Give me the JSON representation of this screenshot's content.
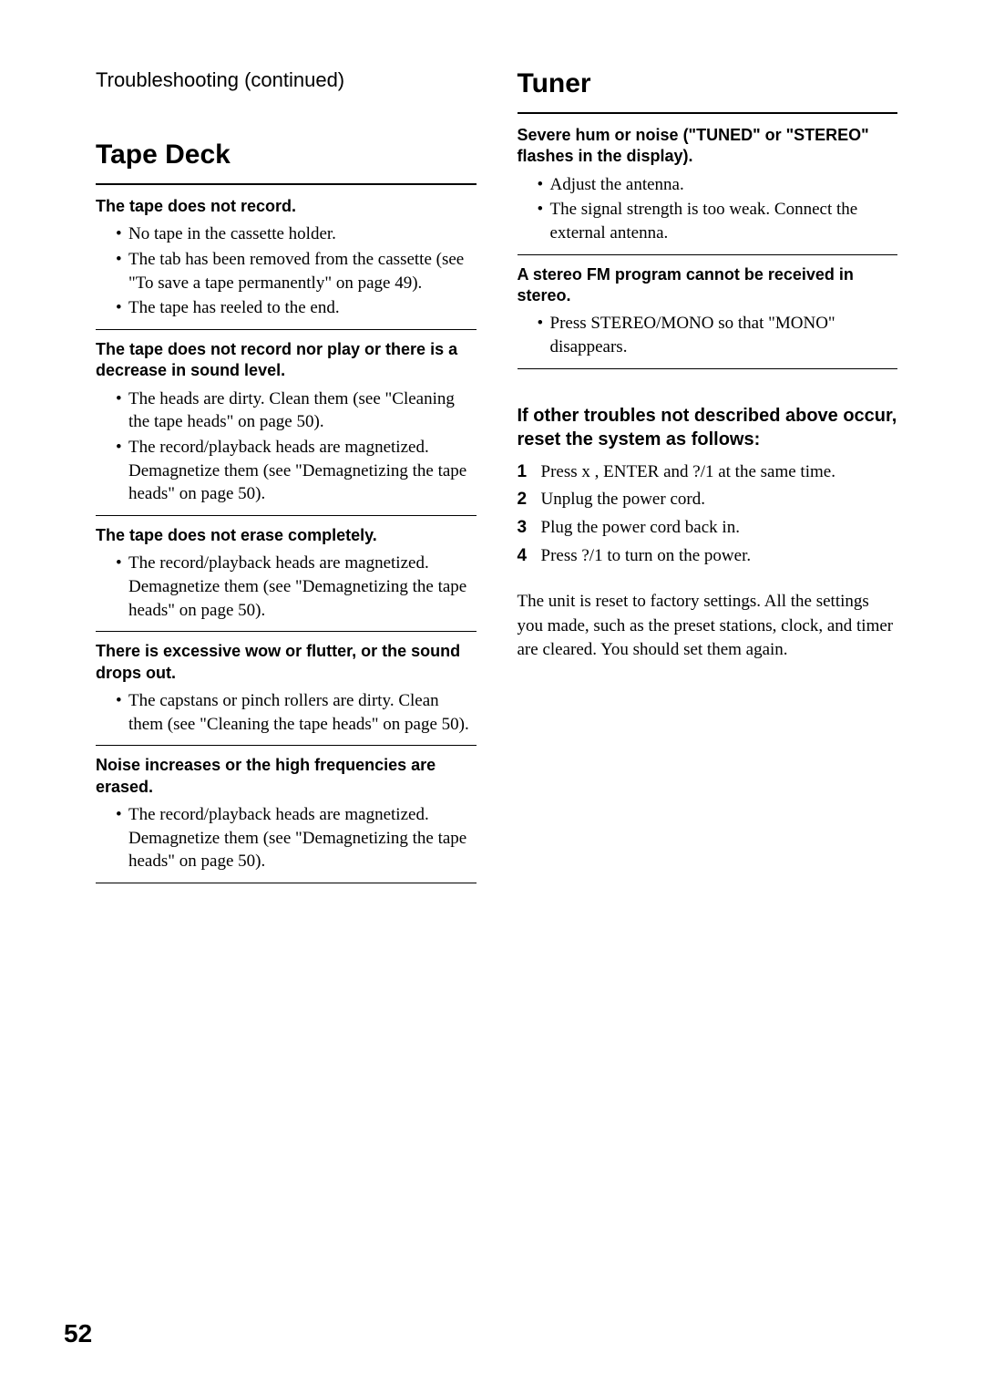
{
  "pageNumber": "52",
  "leftColumn": {
    "continuedHeading": "Troubleshooting (continued)",
    "sectionTitle": "Tape Deck",
    "problems": [
      {
        "title": "The tape does not record.",
        "items": [
          "No tape in the cassette holder.",
          "The tab has been removed from the cassette (see \"To save a tape permanently\" on page 49).",
          "The tape has reeled to the end."
        ]
      },
      {
        "title": "The tape does not record nor play or there is a decrease in sound level.",
        "items": [
          "The heads are dirty. Clean them (see \"Cleaning the tape heads\" on page 50).",
          "The record/playback heads are magnetized. Demagnetize them (see \"Demagnetizing the tape heads\" on page 50)."
        ]
      },
      {
        "title": "The tape does not erase completely.",
        "items": [
          "The record/playback heads are magnetized. Demagnetize them (see \"Demagnetizing the tape heads\" on page 50)."
        ]
      },
      {
        "title": "There is excessive wow or flutter, or the sound drops out.",
        "items": [
          "The capstans or pinch rollers are dirty. Clean them (see \"Cleaning the tape heads\" on page 50)."
        ]
      },
      {
        "title": "Noise increases or the high frequencies are erased.",
        "items": [
          "The record/playback heads are magnetized. Demagnetize them (see \"Demagnetizing the tape heads\" on page 50)."
        ]
      }
    ]
  },
  "rightColumn": {
    "sectionTitle": "Tuner",
    "problems": [
      {
        "title": "Severe hum or noise (\"TUNED\" or \"STEREO\" flashes in the display).",
        "items": [
          "Adjust the antenna.",
          "The signal strength is too weak. Connect the external antenna."
        ]
      },
      {
        "title": "A stereo FM program cannot be received in stereo.",
        "items": [
          "Press STEREO/MONO so that \"MONO\" disappears."
        ]
      }
    ],
    "subsection": {
      "title": "If other troubles not described above occur, reset the system as follows:",
      "steps": [
        {
          "num": "1",
          "text": "Press x , ENTER and ?/1  at the same time."
        },
        {
          "num": "2",
          "text": "Unplug the power cord."
        },
        {
          "num": "3",
          "text": "Plug the power cord back in."
        },
        {
          "num": "4",
          "text": "Press ?/1  to turn on the power."
        }
      ],
      "bodyText": "The unit is reset to factory settings.  All the settings you made, such as the preset stations, clock, and timer are cleared. You should set them again."
    }
  }
}
